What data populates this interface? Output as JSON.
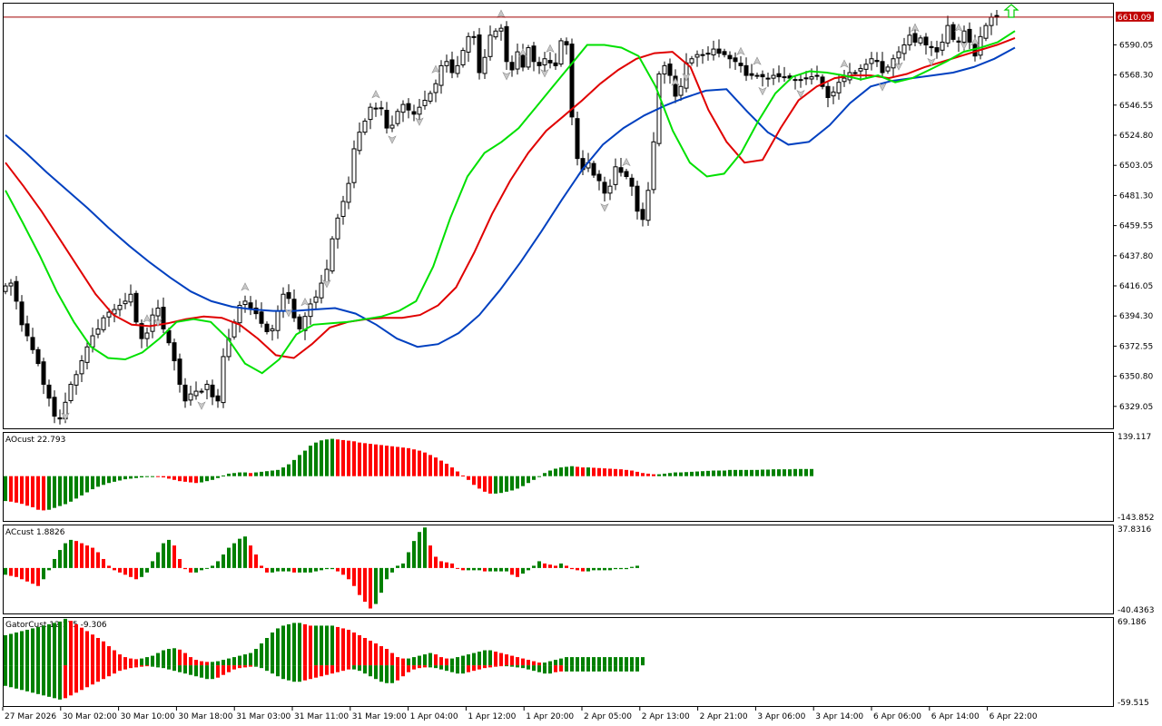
{
  "chart_data": [
    {
      "type": "candlestick",
      "panel": "main",
      "ylim": [
        6313.2,
        6619.8
      ],
      "y_ticks": [
        "6590.05",
        "6568.30",
        "6546.55",
        "6524.80",
        "6503.05",
        "6481.30",
        "6459.55",
        "6437.80",
        "6416.05",
        "6394.30",
        "6372.55",
        "6350.80",
        "6329.05"
      ],
      "current_price_label": "6610.09",
      "current_price": 6610.09,
      "bar_count": 183,
      "candles_close": [
        6416,
        6418,
        6405,
        6388,
        6380,
        6370,
        6360,
        6345,
        6335,
        6322,
        6320,
        6332,
        6345,
        6352,
        6362,
        6372,
        6380,
        6385,
        6393,
        6397,
        6399,
        6402,
        6405,
        6410,
        6390,
        6378,
        6382,
        6395,
        6400,
        6385,
        6375,
        6362,
        6345,
        6333,
        6338,
        6340,
        6340,
        6345,
        6336,
        6333,
        6365,
        6378,
        6390,
        6402,
        6405,
        6400,
        6396,
        6389,
        6383,
        6385,
        6398,
        6410,
        6407,
        6393,
        6385,
        6394,
        6403,
        6408,
        6418,
        6428,
        6450,
        6465,
        6477,
        6490,
        6515,
        6527,
        6535,
        6545,
        6544,
        6544,
        6530,
        6532,
        6542,
        6547,
        6543,
        6540,
        6545,
        6550,
        6555,
        6562,
        6575,
        6578,
        6570,
        6575,
        6586,
        6596,
        6596,
        6570,
        6581,
        6597,
        6600,
        6602,
        6578,
        6572,
        6585,
        6574,
        6588,
        6578,
        6575,
        6580,
        6577,
        6575,
        6593,
        6590,
        6538,
        6508,
        6500,
        6505,
        6496,
        6492,
        6483,
        6488,
        6502,
        6498,
        6495,
        6488,
        6470,
        6464,
        6485,
        6520,
        6569,
        6575,
        6568,
        6553,
        6560,
        6577,
        6580,
        6583,
        6583,
        6584,
        6587,
        6584,
        6583,
        6580,
        6578,
        6575,
        6568,
        6568,
        6568,
        6567,
        6566,
        6568,
        6567,
        6567,
        6566,
        6565,
        6565,
        6566,
        6567,
        6568,
        6560,
        6552,
        6556,
        6563,
        6566,
        6570,
        6570,
        6573,
        6576,
        6580,
        6578,
        6570,
        6574,
        6580,
        6585,
        6590,
        6597,
        6592,
        6595,
        6590,
        6588,
        6585,
        6592,
        6604,
        6594,
        6592,
        6600,
        6592,
        6582,
        6596,
        6604,
        6610,
        6610
      ],
      "series": [
        {
          "name": "",
          "color": "#0040c0",
          "values": [
            6525,
            6512,
            6498,
            6485,
            6472,
            6458,
            6445,
            6433,
            6422,
            6412,
            6405,
            6401,
            6399,
            6398,
            6398,
            6399,
            6400,
            6396,
            6388,
            6378,
            6372,
            6374,
            6382,
            6395,
            6413,
            6433,
            6455,
            6478,
            6500,
            6518,
            6530,
            6539,
            6546,
            6552,
            6557,
            6558,
            6542,
            6527,
            6518,
            6520,
            6532,
            6548,
            6560,
            6564,
            6566,
            6568,
            6570,
            6574,
            6580,
            6588
          ]
        },
        {
          "name": "",
          "color": "#e00000",
          "values": [
            6505,
            6488,
            6470,
            6450,
            6430,
            6410,
            6395,
            6388,
            6387,
            6389,
            6392,
            6394,
            6393,
            6388,
            6378,
            6366,
            6364,
            6374,
            6386,
            6390,
            6392,
            6393,
            6393,
            6395,
            6402,
            6415,
            6440,
            6468,
            6492,
            6512,
            6528,
            6539,
            6550,
            6562,
            6572,
            6580,
            6584,
            6585,
            6574,
            6543,
            6520,
            6505,
            6507,
            6530,
            6550,
            6560,
            6566,
            6568,
            6568,
            6566,
            6569,
            6574,
            6578,
            6582,
            6586,
            6590,
            6595
          ]
        },
        {
          "name": "",
          "color": "#00e000",
          "values": [
            6485,
            6462,
            6438,
            6412,
            6390,
            6372,
            6364,
            6363,
            6368,
            6378,
            6390,
            6392,
            6390,
            6378,
            6360,
            6353,
            6363,
            6381,
            6388,
            6389,
            6390,
            6392,
            6394,
            6398,
            6405,
            6430,
            6465,
            6495,
            6512,
            6520,
            6530,
            6545,
            6560,
            6575,
            6590,
            6590,
            6588,
            6582,
            6560,
            6528,
            6505,
            6495,
            6497,
            6512,
            6535,
            6555,
            6567,
            6571,
            6570,
            6568,
            6565,
            6568,
            6563,
            6566,
            6572,
            6578,
            6585,
            6588,
            6592,
            6600
          ]
        }
      ],
      "fractal_up_bars": [
        26,
        44,
        55,
        68,
        79,
        91,
        95,
        100,
        114,
        123,
        135,
        138,
        154,
        167,
        175,
        178
      ],
      "fractal_down_bars": [
        11,
        28,
        36,
        52,
        59,
        71,
        76,
        92,
        99,
        110,
        125,
        139,
        146,
        161,
        164,
        170,
        176
      ],
      "signal_arrow": "up-arrow"
    },
    {
      "type": "bar",
      "panel": "AOcust",
      "title": "AOcust 22.793",
      "ylim": [
        -143.852,
        139.117
      ],
      "y_ticks": [
        "139.117",
        "-143.852"
      ],
      "colors": {
        "up": "#008000",
        "down": "#ff0000"
      },
      "values": [
        -80,
        -82,
        -85,
        -89,
        -95,
        -100,
        -108,
        -110,
        -108,
        -102,
        -96,
        -90,
        -82,
        -72,
        -62,
        -52,
        -42,
        -34,
        -28,
        -22,
        -18,
        -14,
        -10,
        -8,
        -6,
        -4,
        -2,
        -1,
        -2,
        -4,
        -8,
        -12,
        -16,
        -18,
        -20,
        -22,
        -20,
        -16,
        -12,
        -6,
        2,
        8,
        10,
        12,
        12,
        10,
        12,
        14,
        16,
        18,
        20,
        28,
        38,
        52,
        68,
        82,
        98,
        108,
        115,
        118,
        120,
        118,
        116,
        114,
        112,
        108,
        106,
        104,
        102,
        100,
        98,
        96,
        94,
        92,
        90,
        86,
        82,
        76,
        68,
        60,
        50,
        40,
        28,
        15,
        2,
        -12,
        -28,
        -40,
        -50,
        -56,
        -56,
        -54,
        -50,
        -46,
        -40,
        -32,
        -22,
        -12,
        0,
        10,
        18,
        24,
        28,
        30,
        32,
        30,
        28,
        28,
        27,
        26,
        25,
        24,
        23,
        22,
        20,
        18,
        14,
        10,
        8,
        6,
        6,
        8,
        10,
        12,
        12,
        13,
        14,
        15,
        16,
        17,
        18,
        18,
        18,
        20,
        20,
        20,
        20,
        20,
        20,
        21,
        21,
        22,
        22,
        22,
        22,
        23,
        23,
        23,
        23
      ]
    },
    {
      "type": "bar",
      "panel": "ACcust",
      "title": "ACcust 1.8826",
      "ylim": [
        -40.4363,
        37.8316
      ],
      "y_ticks": [
        "37.8316",
        "-40.4363"
      ],
      "colors": {
        "up": "#008000",
        "down": "#ff0000"
      },
      "values": [
        -6,
        -7,
        -8,
        -10,
        -12,
        -14,
        -16,
        -10,
        -2,
        8,
        16,
        22,
        25,
        24,
        22,
        20,
        18,
        14,
        8,
        2,
        -2,
        -4,
        -6,
        -8,
        -10,
        -8,
        -4,
        6,
        14,
        22,
        25,
        20,
        8,
        -1,
        -4,
        -4,
        -2,
        0,
        2,
        6,
        12,
        18,
        22,
        26,
        28,
        20,
        12,
        2,
        -4,
        -4,
        -3,
        -3,
        -3,
        -4,
        -4,
        -4,
        -4,
        -3,
        -2,
        -1,
        -1,
        -3,
        -6,
        -10,
        -16,
        -24,
        -30,
        -36,
        -32,
        -22,
        -10,
        -4,
        2,
        4,
        14,
        24,
        32,
        36,
        20,
        10,
        6,
        5,
        4,
        0,
        -2,
        -2,
        -2,
        -2,
        -3,
        -3,
        -3,
        -3,
        -3,
        -6,
        -8,
        -5,
        -2,
        2,
        6,
        4,
        3,
        2,
        4,
        2,
        -1,
        -2,
        -3,
        -3,
        -2,
        -2,
        -2,
        -2,
        -1,
        -1,
        -1,
        1,
        2
      ]
    },
    {
      "type": "bar",
      "panel": "GatorCust",
      "title": "GatorCust 12.175 -9.306",
      "ylim": [
        -59.515,
        69.186
      ],
      "y_ticks": [
        "69.186",
        "-59.515"
      ],
      "colors": {
        "up": "#008000",
        "down": "#ff0000"
      },
      "upper_values": [
        44,
        46,
        48,
        50,
        52,
        54,
        56,
        58,
        60,
        62,
        64,
        68,
        65,
        60,
        55,
        50,
        45,
        40,
        35,
        28,
        22,
        16,
        12,
        10,
        9,
        10,
        12,
        14,
        18,
        22,
        24,
        25,
        23,
        18,
        12,
        8,
        6,
        5,
        5,
        6,
        8,
        10,
        12,
        14,
        16,
        18,
        24,
        32,
        40,
        48,
        54,
        58,
        60,
        62,
        62,
        60,
        58,
        58,
        58,
        58,
        58,
        56,
        54,
        52,
        48,
        44,
        40,
        36,
        32,
        28,
        24,
        18,
        12,
        10,
        10,
        12,
        14,
        16,
        18,
        16,
        12,
        10,
        10,
        12,
        14,
        16,
        18,
        20,
        22,
        22,
        20,
        18,
        16,
        14,
        12,
        10,
        8,
        6,
        4,
        4,
        6,
        8,
        10,
        12,
        12,
        12,
        12,
        12,
        12,
        12,
        12,
        12,
        12,
        12,
        12,
        12,
        12,
        12
      ],
      "lower_values": [
        -30,
        -32,
        -34,
        -36,
        -38,
        -40,
        -42,
        -44,
        -46,
        -48,
        -50,
        -48,
        -44,
        -40,
        -36,
        -32,
        -28,
        -24,
        -20,
        -16,
        -12,
        -8,
        -6,
        -4,
        -3,
        -2,
        -1,
        -2,
        -3,
        -4,
        -6,
        -8,
        -10,
        -12,
        -14,
        -16,
        -18,
        -20,
        -20,
        -18,
        -14,
        -10,
        -6,
        -4,
        -3,
        -2,
        -2,
        -4,
        -8,
        -12,
        -16,
        -20,
        -22,
        -24,
        -24,
        -22,
        -20,
        -18,
        -16,
        -14,
        -12,
        -10,
        -8,
        -6,
        -6,
        -8,
        -12,
        -16,
        -20,
        -24,
        -26,
        -26,
        -22,
        -16,
        -10,
        -6,
        -4,
        -3,
        -3,
        -4,
        -6,
        -8,
        -10,
        -12,
        -12,
        -10,
        -8,
        -6,
        -4,
        -3,
        -2,
        -1,
        -1,
        -2,
        -3,
        -4,
        -6,
        -8,
        -10,
        -12,
        -12,
        -10,
        -9,
        -9,
        -9,
        -9,
        -9,
        -9,
        -9,
        -9,
        -9,
        -9,
        -9,
        -9,
        -9,
        -9,
        -9
      ]
    }
  ],
  "time_axis": {
    "labels": [
      "27 Mar 2026",
      "30 Mar 02:00",
      "30 Mar 10:00",
      "30 Mar 18:00",
      "31 Mar 03:00",
      "31 Mar 11:00",
      "31 Mar 19:00",
      "1 Apr 04:00",
      "1 Apr 12:00",
      "1 Apr 20:00",
      "2 Apr 05:00",
      "2 Apr 13:00",
      "2 Apr 21:00",
      "3 Apr 06:00",
      "3 Apr 14:00",
      "6 Apr 06:00",
      "6 Apr 14:00",
      "6 Apr 22:00"
    ]
  }
}
